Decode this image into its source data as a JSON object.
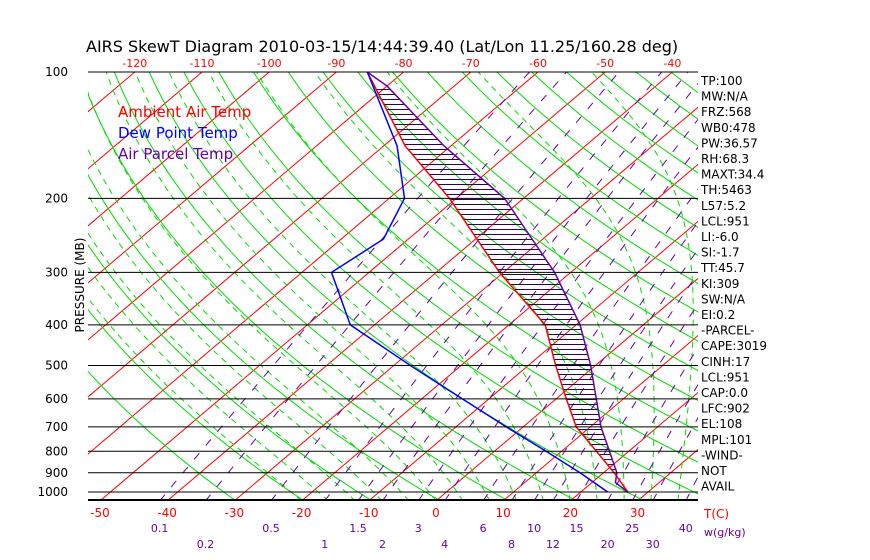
{
  "chart_data": {
    "type": "line",
    "title": "AIRS SkewT Diagram 2010-03-15/14:44:39.40 (Lat/Lon 11.25/160.28 deg)",
    "ylabel": "PRESSURE (MB)",
    "xlabel": "T(C)",
    "mixing_ratio_label": "w(g/kg)",
    "ylim": [
      1050,
      100
    ],
    "pressure_ticks": [
      100,
      200,
      300,
      400,
      500,
      600,
      700,
      800,
      900,
      1000
    ],
    "bottom_temp_ticks": [
      -50,
      -40,
      -30,
      -20,
      -10,
      0,
      10,
      20,
      30
    ],
    "top_temp_ticks": [
      -120,
      -110,
      -100,
      -90,
      -80,
      -70,
      -60,
      -50,
      -40
    ],
    "mixing_ratio_ticks": [
      "0.1",
      "0.2",
      "0.5",
      "1",
      "1.5",
      "2",
      "3",
      "4",
      "6",
      "8",
      "10",
      "12",
      "15",
      "20",
      "25",
      "30",
      "40"
    ],
    "legend": [
      {
        "label": "Ambient Air Temp",
        "color": "#ff0000"
      },
      {
        "label": "Dew Point Temp",
        "color": "#0000ff"
      },
      {
        "label": "Air Parcel Temp",
        "color": "#6600aa"
      }
    ],
    "series": [
      {
        "name": "Ambient Air Temp",
        "color": "#ff0000",
        "pressure": [
          1000,
          900,
          700,
          600,
          500,
          400,
          300,
          200,
          150,
          100
        ],
        "temperature": [
          27,
          21.6,
          7.9,
          1.5,
          -5.9,
          -14.6,
          -30.6,
          -51,
          -66.8,
          -85.4
        ]
      },
      {
        "name": "Dew Point Temp",
        "color": "#0000ff",
        "pressure": [
          1000,
          900,
          800,
          700,
          600,
          500,
          400,
          300,
          250,
          200,
          150,
          100
        ],
        "temperature": [
          24,
          16.5,
          7.7,
          -2.5,
          -14,
          -27.5,
          -43.6,
          -55.6,
          -53.7,
          -57.7,
          -68,
          -85.4
        ]
      },
      {
        "name": "Air Parcel Temp",
        "color": "#6600aa",
        "pressure": [
          1000,
          950,
          900,
          700,
          500,
          400,
          300,
          200,
          150,
          108,
          100
        ],
        "temperature": [
          27,
          23.5,
          22,
          11.6,
          -0.7,
          -9.4,
          -22.4,
          -42.8,
          -61,
          -80,
          -85.4
        ]
      }
    ],
    "indices": [
      "TP:100",
      "MW:N/A",
      "FRZ:568",
      "WB0:478",
      "PW:36.57",
      "RH:68.3",
      "MAXT:34.4",
      "TH:5463",
      "L57:5.2",
      "LCL:951",
      "LI:-6.0",
      "SI:-1.7",
      "TT:45.7",
      "KI:309",
      "SW:N/A",
      "EI:0.2",
      "-PARCEL-",
      "CAPE:3019",
      "CINH:17",
      "LCL:951",
      "CAP:0.0",
      "LFC:902",
      "EL:108",
      "MPL:101",
      "-WIND-",
      "NOT",
      "AVAIL"
    ]
  }
}
